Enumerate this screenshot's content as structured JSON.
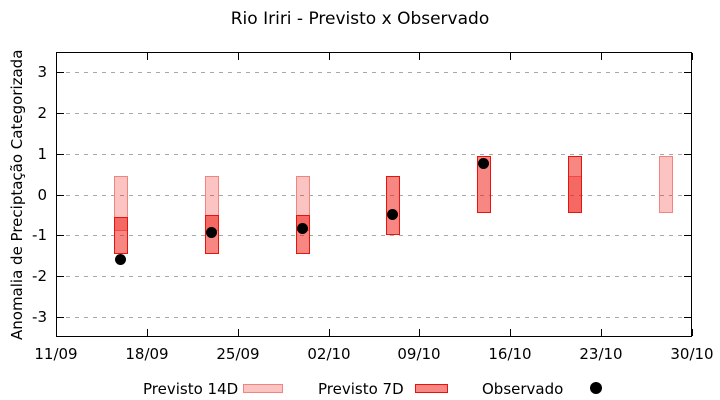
{
  "window": {
    "title": "Rio Iriri - Previsto x Observado"
  },
  "legend": {
    "items": [
      {
        "label": "Previsto 14D",
        "swatch": "box",
        "fill": "#fbc3c1",
        "border": "#f0857d"
      },
      {
        "label": "Previsto 7D",
        "swatch": "box",
        "fill": "#f78783",
        "border": "#e8140c"
      },
      {
        "label": "Observado",
        "swatch": "dot",
        "fill": "#000000",
        "border": "#000000"
      }
    ]
  },
  "chart_data": {
    "type": "candlestick",
    "title": "Rio Iriri - Previsto x Observado",
    "xlabel": "",
    "ylabel": "Anomalia de Preciptação Categorizada",
    "ylim": [
      -3.5,
      3.5
    ],
    "yticks": [
      3,
      2,
      1,
      0,
      -1,
      -2,
      -3
    ],
    "grid": {
      "horizontal": true,
      "vertical": false,
      "style": "dashed",
      "color": "#a8a8a8"
    },
    "x_span_days": 49,
    "xticks": [
      {
        "day": 0,
        "label": "11/09"
      },
      {
        "day": 7,
        "label": "18/09"
      },
      {
        "day": 14,
        "label": "25/09"
      },
      {
        "day": 21,
        "label": "02/10"
      },
      {
        "day": 28,
        "label": "09/10"
      },
      {
        "day": 35,
        "label": "16/10"
      },
      {
        "day": 42,
        "label": "23/10"
      },
      {
        "day": 49,
        "label": "30/10"
      }
    ],
    "colors": {
      "forecast_base_red": "#f01008",
      "alpha_14d": 0.25,
      "alpha_7d": 0.5,
      "border_14d": "#f0857d",
      "border_7d": "#e8140c",
      "observed": "#000000"
    },
    "series": [
      {
        "name": "Previsto 14D",
        "render": "box",
        "points": [
          {
            "day": 5,
            "date": "16/09",
            "lo": -0.9,
            "hi": 0.45
          },
          {
            "day": 12,
            "date": "23/09",
            "lo": -0.9,
            "hi": 0.45
          },
          {
            "day": 19,
            "date": "30/09",
            "lo": -0.9,
            "hi": 0.45
          },
          {
            "day": 40,
            "date": "21/10",
            "lo": -0.45,
            "hi": 0.45
          },
          {
            "day": 47,
            "date": "28/10",
            "lo": -0.45,
            "hi": 0.95
          }
        ]
      },
      {
        "name": "Previsto 7D",
        "render": "box",
        "points": [
          {
            "day": 5,
            "date": "16/09",
            "lo": -1.45,
            "hi": -0.55
          },
          {
            "day": 12,
            "date": "23/09",
            "lo": -1.45,
            "hi": -0.5
          },
          {
            "day": 19,
            "date": "30/09",
            "lo": -1.45,
            "hi": -0.5
          },
          {
            "day": 26,
            "date": "07/10",
            "lo": -1.0,
            "hi": 0.45
          },
          {
            "day": 33,
            "date": "14/10",
            "lo": -0.45,
            "hi": 0.95
          },
          {
            "day": 40,
            "date": "21/10",
            "lo": -0.45,
            "hi": 0.95
          }
        ]
      },
      {
        "name": "Observado",
        "render": "point",
        "points": [
          {
            "day": 5,
            "date": "16/09",
            "value": -1.6
          },
          {
            "day": 12,
            "date": "23/09",
            "value": -0.95
          },
          {
            "day": 19,
            "date": "30/09",
            "value": -0.85
          },
          {
            "day": 26,
            "date": "07/10",
            "value": -0.5
          },
          {
            "day": 33,
            "date": "14/10",
            "value": 0.75
          }
        ]
      }
    ]
  }
}
